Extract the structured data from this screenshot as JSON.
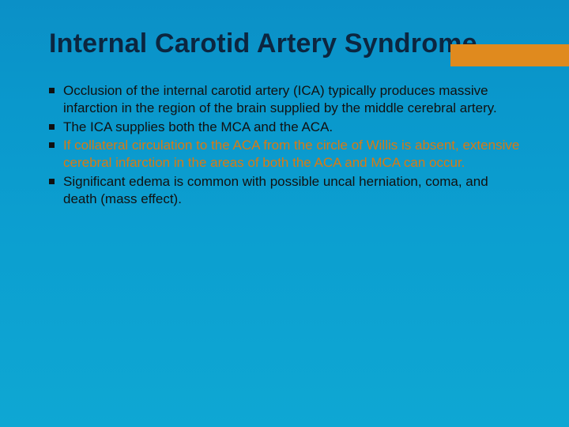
{
  "slide": {
    "title": "Internal Carotid Artery Syndrome",
    "accent_color": "#e08a1e",
    "title_color": "#0c2640",
    "background_gradient": [
      "#0b90c7",
      "#0ea7d3"
    ],
    "bullet_marker_color": "#111111",
    "highlight_color": "#d97a12",
    "title_fontsize": 34,
    "body_fontsize": 17,
    "bullets": [
      {
        "text": "Occlusion of the internal carotid artery (ICA) typically produces massive infarction in the region of the brain supplied by the middle cerebral artery.",
        "highlight": false
      },
      {
        "text": "The ICA supplies both the MCA and the ACA.",
        "highlight": false
      },
      {
        "text": " If collateral circulation to the ACA from the circle of Willis is absent, extensive cerebral infarction in the areas of both the ACA and MCA can occur.",
        "highlight": true
      },
      {
        "text": "Significant edema is common with possible uncal herniation, coma, and death (mass effect).",
        "highlight": false
      }
    ]
  }
}
